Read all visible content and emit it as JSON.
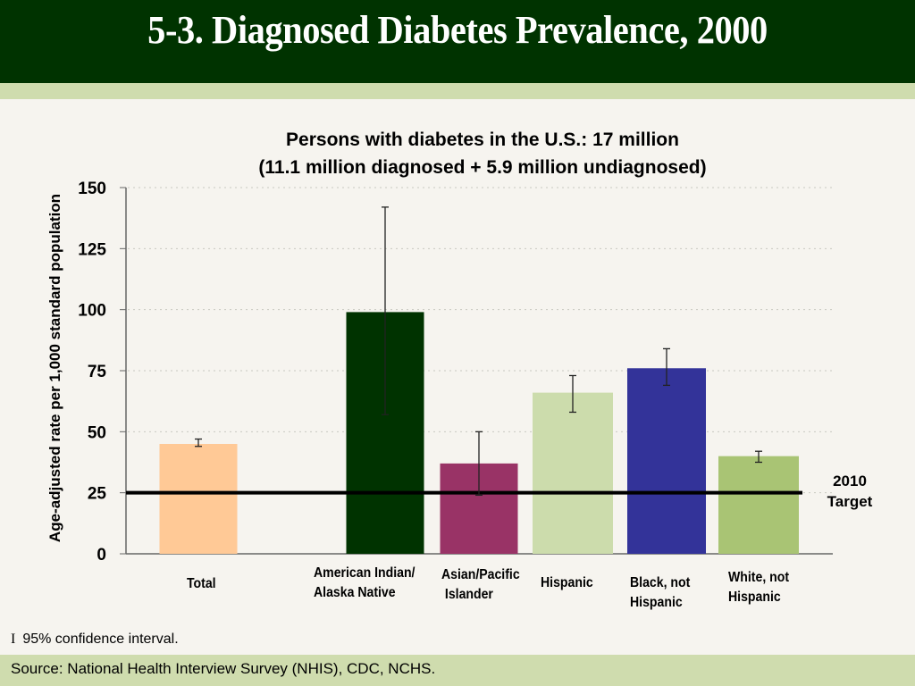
{
  "slide": {
    "title": "5-3.  Diagnosed Diabetes Prevalence, 2000",
    "footnote_symbol": "I",
    "footnote": "95% confidence interval.",
    "source": "Source: National Health Interview Survey (NHIS), CDC, NCHS."
  },
  "chart_data": {
    "type": "bar",
    "title": "Persons with diabetes in the U.S.: 17 million",
    "subtitle": "(11.1 million diagnosed + 5.9 million undiagnosed)",
    "xlabel": "",
    "ylabel": "Age-adjusted rate per 1,000 standard population",
    "ylim": [
      0,
      150
    ],
    "yticks": [
      0,
      25,
      50,
      75,
      100,
      125,
      150
    ],
    "grid": true,
    "categories": [
      "Total",
      "American Indian/ Alaska Native",
      "Asian/Pacific Islander",
      "Hispanic",
      "Black, not Hispanic",
      "White, not Hispanic"
    ],
    "category_lines": [
      [
        "Total"
      ],
      [
        "American Indian/",
        "Alaska Native"
      ],
      [
        "Asian/Pacific",
        " Islander"
      ],
      [
        "Hispanic"
      ],
      [
        "Black, not",
        "Hispanic"
      ],
      [
        "White, not",
        "Hispanic"
      ]
    ],
    "values": [
      45,
      99,
      37,
      66,
      76,
      40
    ],
    "ci_lower": [
      44,
      57,
      24,
      58,
      69,
      37.5
    ],
    "ci_upper": [
      47,
      142,
      50,
      73,
      84,
      42
    ],
    "colors": [
      "#ffc996",
      "#003300",
      "#993366",
      "#ccdcac",
      "#333399",
      "#a9c474"
    ],
    "reference_line": {
      "value": 25,
      "label_lines": [
        "2010",
        "Target"
      ]
    },
    "legend": "none"
  }
}
